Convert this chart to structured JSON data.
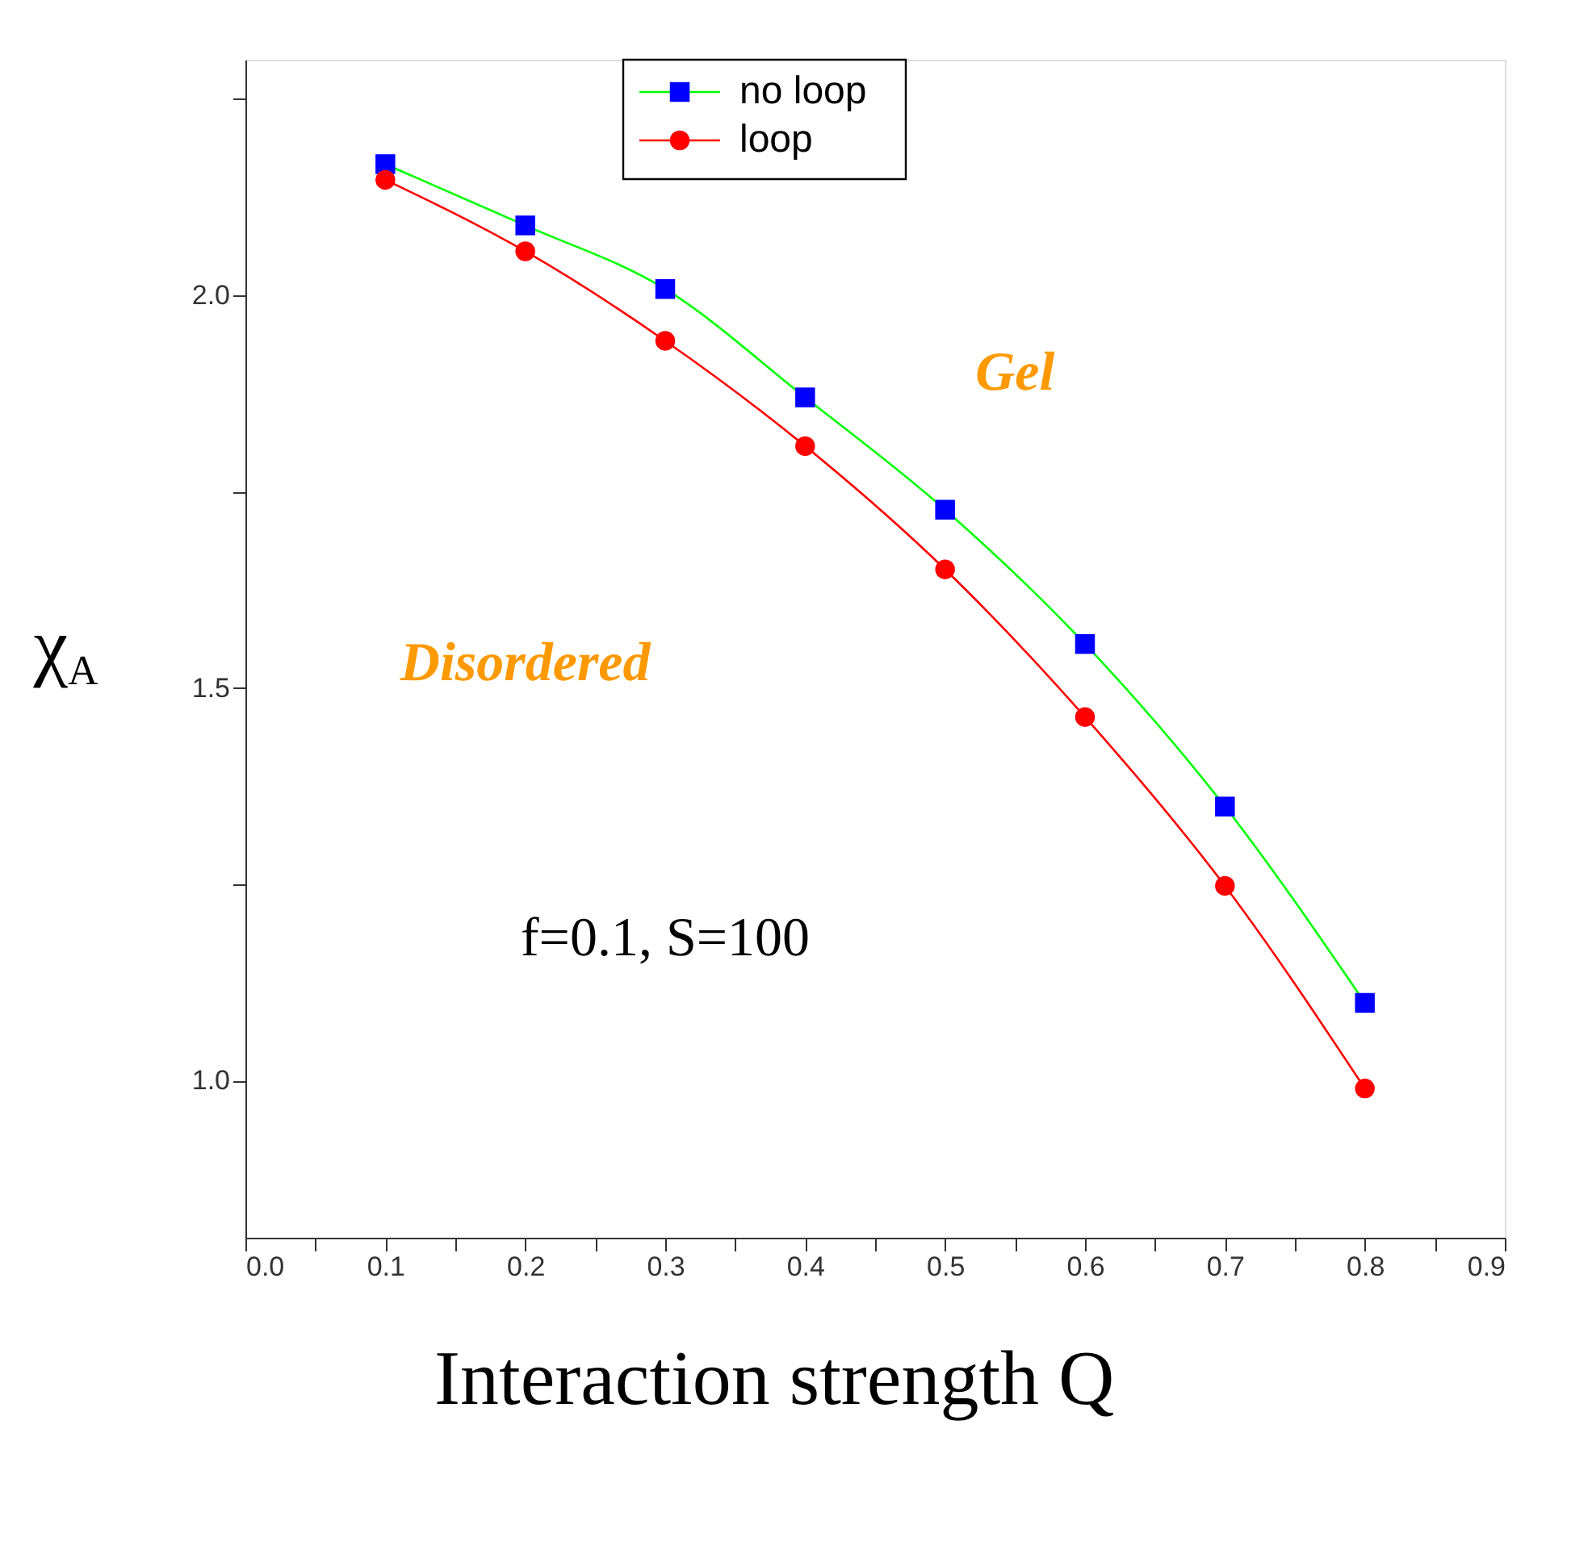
{
  "chart_data": {
    "type": "line",
    "xlabel": "Interaction strength Q",
    "ylabel": "χ$_{A}$",
    "x": [
      0.1,
      0.2,
      0.3,
      0.4,
      0.5,
      0.6,
      0.7,
      0.8
    ],
    "series": [
      {
        "name": "no loop",
        "color": "#00ff00",
        "colors": [
          "#0000ff",
          "#0000ff",
          "#0000ff",
          "#0000ff",
          "#0000ff",
          "#0000ff",
          "#0000ff",
          "#0000ff"
        ],
        "marker": "square",
        "values": [
          2.167,
          2.089,
          2.008,
          1.87,
          1.727,
          1.556,
          1.349,
          1.099
        ]
      },
      {
        "name": "loop",
        "color": "#ff0000",
        "marker": "circle",
        "values": [
          2.147,
          2.056,
          1.942,
          1.808,
          1.651,
          1.463,
          1.248,
          0.99
        ]
      }
    ],
    "xlim": [
      0,
      0.9
    ],
    "xticks": [
      {
        "value": 0,
        "label": "0.0"
      },
      {
        "value": 0.05,
        "label": null
      },
      0.1,
      {
        "value": 0.15,
        "label": null
      },
      0.2,
      {
        "value": 0.25,
        "label": null
      },
      0.3,
      {
        "value": 0.35,
        "label": null
      },
      0.4,
      {
        "value": 0.45,
        "label": null
      },
      0.5,
      {
        "value": 0.55,
        "label": null
      },
      0.6,
      {
        "value": 0.65,
        "label": null
      },
      0.7,
      {
        "value": 0.75,
        "label": null
      },
      0.8,
      {
        "value": 0.85,
        "label": null
      },
      0.9
    ],
    "ylim": [
      0.8,
      2.3
    ],
    "yticks": [
      {
        "value": 1,
        "label": "1.0"
      },
      {
        "value": 1.25,
        "label": null
      },
      1.5,
      {
        "value": 1.75,
        "label": null
      },
      {
        "value": 2,
        "label": "2.0"
      },
      {
        "value": 2.25,
        "label": null
      }
    ],
    "annotations": [
      "Gel",
      "Disordered",
      "f=0.1, S=100"
    ],
    "legend": "top",
    "grid": false,
    "line_style": "solid"
  }
}
